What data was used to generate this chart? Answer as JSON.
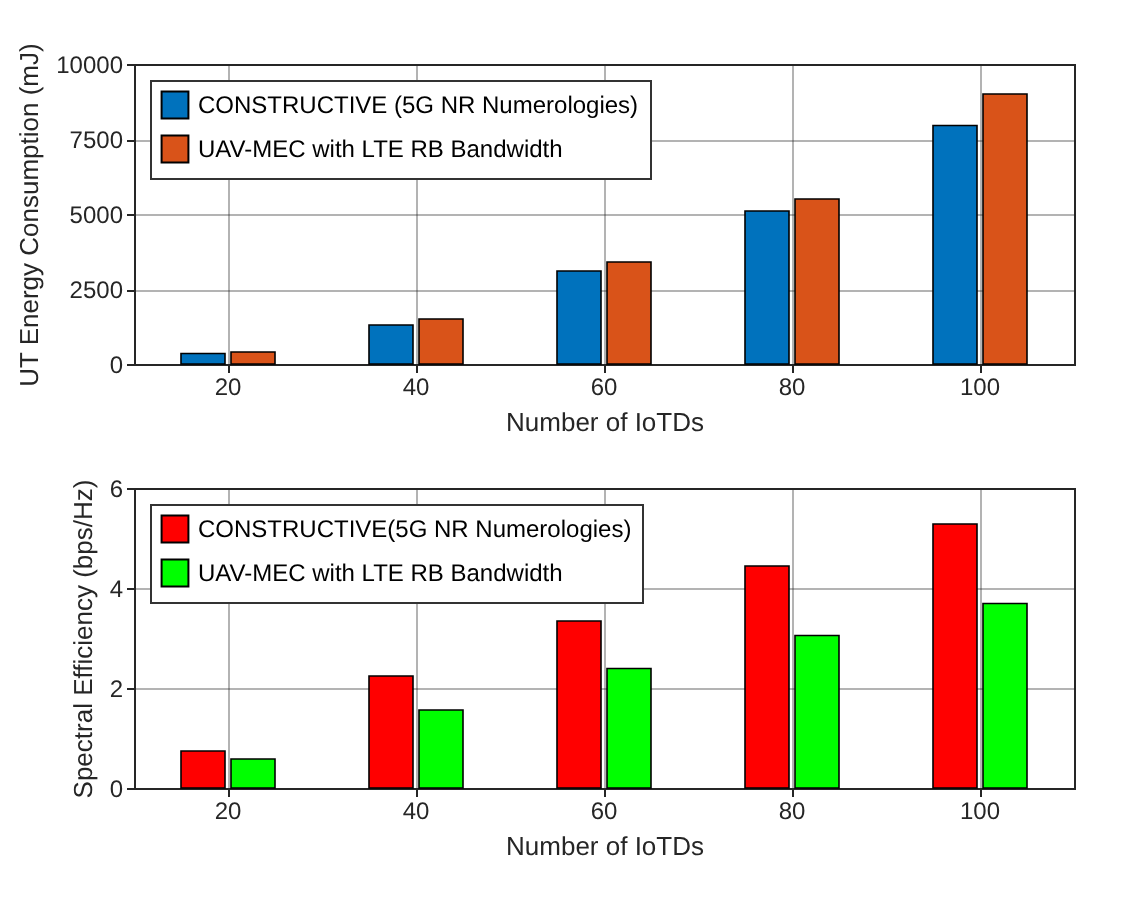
{
  "chart_data": [
    {
      "type": "bar",
      "xlabel": "Number of IoTDs",
      "ylabel": "UT Energy Consumption (mJ)",
      "categories": [
        "20",
        "40",
        "60",
        "80",
        "100"
      ],
      "ylim": [
        0,
        10000
      ],
      "yticks": [
        0,
        2500,
        5000,
        7500,
        10000
      ],
      "grid": true,
      "legend": "top left",
      "series": [
        {
          "name": "CONSTRUCTIVE (5G NR Numerologies)",
          "color": "#0072bd",
          "values": [
            350,
            1300,
            3100,
            5100,
            7950
          ]
        },
        {
          "name": "UAV-MEC with LTE RB Bandwidth",
          "color": "#d95319",
          "values": [
            400,
            1500,
            3400,
            5500,
            9000
          ]
        }
      ]
    },
    {
      "type": "bar",
      "xlabel": "Number of IoTDs",
      "ylabel": "Spectral Efficiency (bps/Hz)",
      "categories": [
        "20",
        "40",
        "60",
        "80",
        "100"
      ],
      "ylim": [
        0,
        6
      ],
      "yticks": [
        0,
        2,
        4,
        6
      ],
      "grid": true,
      "legend": "top left",
      "series": [
        {
          "name": "CONSTRUCTIVE(5G NR Numerologies)",
          "color": "#ff0000",
          "values": [
            0.74,
            2.24,
            3.34,
            4.44,
            5.28
          ]
        },
        {
          "name": "UAV-MEC with LTE RB Bandwidth",
          "color": "#00ff00",
          "values": [
            0.58,
            1.56,
            2.39,
            3.05,
            3.69
          ]
        }
      ]
    }
  ]
}
